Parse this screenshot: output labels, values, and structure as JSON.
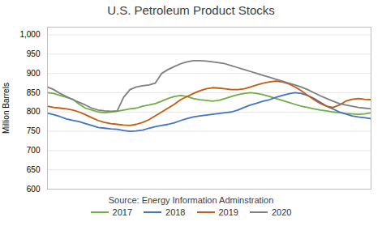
{
  "chart_data": {
    "type": "line",
    "title": "U.S. Petroleum Product Stocks",
    "ylabel": "Million Barrels",
    "annotation": "Source: Energy Information Adminstration",
    "x": [
      0,
      1,
      2,
      3,
      4,
      5,
      6,
      7,
      8,
      9,
      10,
      11,
      12,
      13,
      14,
      15,
      16,
      17,
      18,
      19,
      20,
      21,
      22,
      23,
      24,
      25,
      26,
      27,
      28,
      29,
      30,
      31,
      32,
      33,
      34,
      35,
      36,
      37,
      38,
      39,
      40,
      41,
      42,
      43,
      44,
      45,
      46,
      47,
      48,
      49,
      50,
      51
    ],
    "xlim": [
      0,
      51
    ],
    "ylim": [
      600,
      1020
    ],
    "yticks": [
      600,
      650,
      700,
      750,
      800,
      850,
      900,
      950,
      1000
    ],
    "grid": true,
    "legend": "bottom",
    "tick_labels": "y",
    "series": [
      {
        "name": "2017",
        "color": "#70ad47",
        "values": [
          850,
          848,
          843,
          838,
          833,
          820,
          810,
          805,
          800,
          798,
          800,
          802,
          805,
          808,
          810,
          815,
          818,
          822,
          828,
          835,
          840,
          843,
          840,
          835,
          832,
          830,
          828,
          830,
          835,
          840,
          845,
          848,
          850,
          848,
          845,
          840,
          835,
          830,
          825,
          820,
          815,
          812,
          808,
          805,
          803,
          800,
          798,
          796,
          795,
          794,
          795,
          798
        ]
      },
      {
        "name": "2018",
        "color": "#4472c4",
        "values": [
          797,
          793,
          788,
          782,
          778,
          775,
          770,
          765,
          760,
          758,
          756,
          755,
          752,
          750,
          751,
          753,
          758,
          762,
          765,
          768,
          772,
          778,
          783,
          787,
          790,
          792,
          794,
          796,
          798,
          800,
          805,
          812,
          818,
          823,
          828,
          832,
          838,
          843,
          847,
          850,
          848,
          843,
          835,
          825,
          815,
          808,
          800,
          795,
          790,
          787,
          785,
          783
        ]
      },
      {
        "name": "2019",
        "color": "#c55a11",
        "values": [
          815,
          812,
          810,
          808,
          805,
          800,
          793,
          785,
          778,
          773,
          770,
          768,
          766,
          765,
          768,
          773,
          780,
          790,
          800,
          810,
          820,
          832,
          840,
          848,
          855,
          860,
          863,
          862,
          860,
          858,
          858,
          860,
          865,
          870,
          875,
          878,
          880,
          878,
          873,
          865,
          855,
          843,
          832,
          822,
          815,
          812,
          818,
          828,
          833,
          835,
          833,
          832
        ]
      },
      {
        "name": "2020",
        "color": "#7f7f7f",
        "values": [
          865,
          858,
          848,
          840,
          832,
          825,
          818,
          810,
          805,
          803,
          802,
          803,
          838,
          858,
          865,
          868,
          870,
          875,
          900,
          910,
          918,
          925,
          930,
          933,
          933,
          932,
          930,
          928,
          925,
          920,
          915,
          910,
          905,
          900,
          895,
          890,
          885,
          880,
          875,
          870,
          865,
          858,
          850,
          842,
          835,
          828,
          822,
          818,
          815,
          812,
          810,
          808
        ]
      }
    ]
  }
}
